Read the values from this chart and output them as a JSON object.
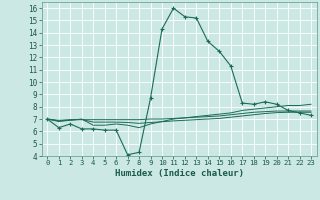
{
  "title": "",
  "xlabel": "Humidex (Indice chaleur)",
  "background_color": "#cce8e4",
  "grid_color": "#ffffff",
  "line_color": "#1a6b5a",
  "xlim": [
    -0.5,
    23.5
  ],
  "ylim": [
    4,
    16.5
  ],
  "yticks": [
    4,
    5,
    6,
    7,
    8,
    9,
    10,
    11,
    12,
    13,
    14,
    15,
    16
  ],
  "xticks": [
    0,
    1,
    2,
    3,
    4,
    5,
    6,
    7,
    8,
    9,
    10,
    11,
    12,
    13,
    14,
    15,
    16,
    17,
    18,
    19,
    20,
    21,
    22,
    23
  ],
  "series1_x": [
    0,
    1,
    2,
    3,
    4,
    5,
    6,
    7,
    8,
    9,
    10,
    11,
    12,
    13,
    14,
    15,
    16,
    17,
    18,
    19,
    20,
    21,
    22,
    23
  ],
  "series1_y": [
    7.0,
    6.3,
    6.6,
    6.2,
    6.2,
    6.1,
    6.1,
    4.1,
    4.3,
    8.7,
    14.3,
    16.0,
    15.3,
    15.2,
    13.3,
    12.5,
    11.3,
    8.3,
    8.2,
    8.4,
    8.2,
    7.7,
    7.5,
    7.3
  ],
  "series2_x": [
    0,
    1,
    2,
    3,
    4,
    5,
    6,
    7,
    8,
    9,
    10,
    11,
    12,
    13,
    14,
    15,
    16,
    17,
    18,
    19,
    20,
    21,
    22,
    23
  ],
  "series2_y": [
    7.0,
    6.8,
    6.9,
    7.0,
    6.5,
    6.5,
    6.6,
    6.5,
    6.3,
    6.6,
    6.8,
    7.0,
    7.1,
    7.2,
    7.3,
    7.4,
    7.5,
    7.7,
    7.8,
    7.9,
    8.0,
    8.1,
    8.1,
    8.2
  ],
  "series3_x": [
    0,
    1,
    2,
    3,
    4,
    5,
    6,
    7,
    8,
    9,
    10,
    11,
    12,
    13,
    14,
    15,
    16,
    17,
    18,
    19,
    20,
    21,
    22,
    23
  ],
  "series3_y": [
    7.0,
    6.9,
    6.95,
    6.95,
    6.95,
    6.95,
    6.95,
    6.95,
    6.95,
    7.0,
    7.0,
    7.05,
    7.1,
    7.15,
    7.2,
    7.25,
    7.35,
    7.45,
    7.55,
    7.6,
    7.65,
    7.65,
    7.65,
    7.65
  ],
  "series4_x": [
    0,
    1,
    2,
    3,
    4,
    5,
    6,
    7,
    8,
    9,
    10,
    11,
    12,
    13,
    14,
    15,
    16,
    17,
    18,
    19,
    20,
    21,
    22,
    23
  ],
  "series4_y": [
    7.0,
    6.85,
    6.92,
    6.97,
    6.75,
    6.75,
    6.75,
    6.72,
    6.65,
    6.72,
    6.78,
    6.85,
    6.9,
    6.95,
    7.0,
    7.05,
    7.15,
    7.25,
    7.35,
    7.45,
    7.52,
    7.55,
    7.55,
    7.55
  ]
}
